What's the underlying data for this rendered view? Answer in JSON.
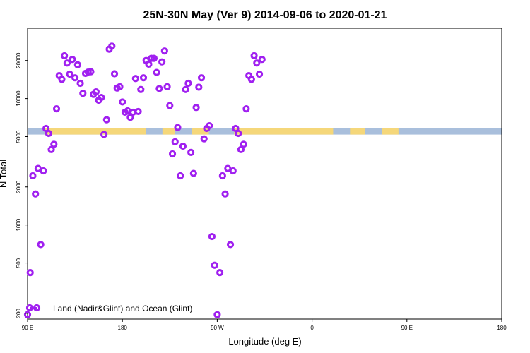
{
  "chart_data": {
    "type": "scatter",
    "title": "25N-30N May (Ver 9)   2014-09-06 to 2020-01-21",
    "xlabel": "Longitude (deg E)",
    "ylabel": "N Total",
    "y_scale": "log",
    "ylim": [
      180,
      36000
    ],
    "x_axis": {
      "display_range": [
        "90 E",
        "180"
      ],
      "tick_labels": [
        "90 E",
        "180",
        "90 W",
        "0",
        "90 E",
        "180"
      ]
    },
    "y_ticks": [
      200,
      500,
      1000,
      2000,
      5000,
      10000,
      20000
    ],
    "grid": false,
    "band": {
      "value": 5500,
      "land_color": "#f5d77a",
      "ocean_color": "#a9bfdc"
    },
    "legend": {
      "position": "bottom-left",
      "label": "Land (Nadir&Glint) and Ocean (Glint)",
      "color": "#a020f0"
    },
    "series": [
      {
        "name": "Land (Nadir&Glint) and Ocean (Glint)",
        "color": "#a020f0",
        "points": [
          [
            90,
            195
          ],
          [
            92.5,
            420
          ],
          [
            95,
            2450
          ],
          [
            97.5,
            1760
          ],
          [
            100,
            2800
          ],
          [
            102.5,
            700
          ],
          [
            105,
            2680
          ],
          [
            107.5,
            5800
          ],
          [
            110,
            5300
          ],
          [
            112.5,
            3950
          ],
          [
            115,
            4350
          ],
          [
            117.5,
            8300
          ],
          [
            120,
            15200
          ],
          [
            122.5,
            14200
          ],
          [
            125,
            21800
          ],
          [
            127.5,
            19100
          ],
          [
            130,
            15600
          ],
          [
            132.5,
            20400
          ],
          [
            135,
            14600
          ],
          [
            137.5,
            18500
          ],
          [
            140,
            13200
          ],
          [
            142.5,
            11000
          ],
          [
            145,
            15800
          ],
          [
            147.5,
            16200
          ],
          [
            150,
            16300
          ],
          [
            152.5,
            10800
          ],
          [
            155,
            11300
          ],
          [
            157.5,
            9700
          ],
          [
            160,
            10200
          ],
          [
            162.5,
            5200
          ],
          [
            165,
            6800
          ],
          [
            167.5,
            24600
          ],
          [
            170,
            26000
          ],
          [
            172.5,
            15700
          ],
          [
            175,
            12100
          ],
          [
            177.5,
            12400
          ],
          [
            180,
            9400
          ],
          [
            182.5,
            7800
          ],
          [
            185,
            8000
          ],
          [
            187.5,
            7100
          ],
          [
            190,
            7800
          ],
          [
            192.5,
            14400
          ],
          [
            195,
            7900
          ],
          [
            197.5,
            11800
          ],
          [
            200,
            14600
          ],
          [
            202.5,
            20000
          ],
          [
            205,
            18700
          ],
          [
            207.5,
            20800
          ],
          [
            210,
            20800
          ],
          [
            212.5,
            16100
          ],
          [
            215,
            12000
          ],
          [
            217.5,
            19500
          ],
          [
            220,
            23800
          ],
          [
            222.5,
            12400
          ],
          [
            225,
            8800
          ],
          [
            227.5,
            3650
          ],
          [
            230,
            4550
          ],
          [
            232.5,
            5900
          ],
          [
            235,
            2450
          ],
          [
            237.5,
            4200
          ],
          [
            240,
            11800
          ],
          [
            242.5,
            13200
          ],
          [
            245,
            3750
          ],
          [
            247.5,
            2560
          ],
          [
            250,
            8500
          ],
          [
            252.5,
            12300
          ],
          [
            255,
            14600
          ],
          [
            257.5,
            4800
          ],
          [
            260,
            5800
          ],
          [
            262.5,
            6100
          ],
          [
            265,
            810
          ],
          [
            267.5,
            480
          ],
          [
            270,
            195
          ],
          [
            272.5,
            420
          ],
          [
            275,
            2450
          ],
          [
            277.5,
            1760
          ],
          [
            280,
            2800
          ],
          [
            282.5,
            700
          ],
          [
            285,
            2680
          ],
          [
            287.5,
            5800
          ],
          [
            290,
            5300
          ],
          [
            292.5,
            3950
          ],
          [
            295,
            4350
          ],
          [
            297.5,
            8300
          ],
          [
            300,
            15200
          ],
          [
            302.5,
            14200
          ],
          [
            305,
            21800
          ],
          [
            307.5,
            19100
          ],
          [
            310,
            15600
          ],
          [
            312.5,
            20400
          ]
        ]
      }
    ]
  }
}
